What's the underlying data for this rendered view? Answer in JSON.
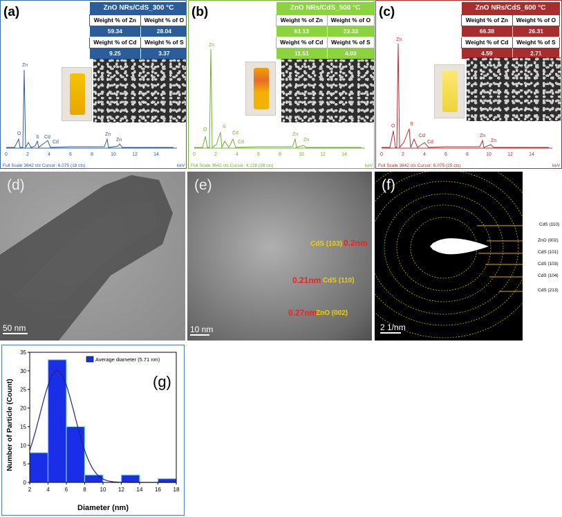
{
  "panel_a": {
    "letter": "(a)",
    "title": "ZnO NRs/CdS_300 °C",
    "headers": [
      "Weight % of Zn",
      "Weight % of O",
      "Weight % of Cd",
      "Weight % of S"
    ],
    "values": [
      "59.34",
      "28.04",
      "9.25",
      "3.37"
    ],
    "footer": "Full Scale 3642 cts Cursor: 6.075  (18 cts)",
    "unit": "keV",
    "color": "#2a5d9a"
  },
  "panel_b": {
    "letter": "(b)",
    "title": "ZnO NRs/CdS_500 °C",
    "headers": [
      "Weight % of Zn",
      "Weight % of O",
      "Weight % of Cd",
      "Weight % of S"
    ],
    "values": [
      "61.13",
      "23.33",
      "11.51",
      "4.03"
    ],
    "footer": "Full Scale 3642 cts Cursor: 4.128  (28 cts)",
    "unit": "keV",
    "color": "#6fb12e"
  },
  "panel_c": {
    "letter": "(c)",
    "title": "ZnO NRs/CdS_600 °C",
    "headers": [
      "Weight % of Zn",
      "Weight % of O",
      "Weight % of Cd",
      "Weight % of S"
    ],
    "values": [
      "66.38",
      "26.31",
      "4.59",
      "2.71"
    ],
    "footer": "Full Scale 3642 cts Cursor: 6.075  (25 cts)",
    "unit": "keV",
    "color": "#b03030"
  },
  "edx_axis_ticks": [
    "0",
    "2",
    "4",
    "6",
    "8",
    "10",
    "12",
    "14"
  ],
  "edx_peak_labels": [
    "Zn",
    "O",
    "S",
    "Cd",
    "Cd",
    "Zn",
    "Zn"
  ],
  "panel_d": {
    "letter": "(d)",
    "scale": "50 nm"
  },
  "panel_e": {
    "letter": "(e)",
    "scale": "10 nm",
    "plane_labels": [
      "CdS (103)",
      "CdS (110)",
      "ZnO (002)"
    ],
    "spacing_labels": [
      "0.2nm",
      "0.21nm",
      "0.27nm"
    ]
  },
  "panel_f": {
    "letter": "(f)",
    "scale": "2 1/nm",
    "ring_labels": [
      "CdS (110)",
      "ZnO (002)",
      "CdS (101)",
      "CdS (103)",
      "CdS (104)",
      "CdS (213)"
    ]
  },
  "chart_data": {
    "type": "bar",
    "panel_letter": "(g)",
    "legend": "Average diameter (5.71 nm)",
    "xlabel": "Diameter (nm)",
    "ylabel": "Number of Particle (Count)",
    "xlim": [
      2,
      18
    ],
    "ylim": [
      0,
      35
    ],
    "xticks": [
      "2",
      "4",
      "6",
      "8",
      "10",
      "12",
      "14",
      "16",
      "18"
    ],
    "yticks": [
      "0",
      "5",
      "10",
      "15",
      "20",
      "25",
      "30",
      "35"
    ],
    "bins": [
      {
        "from": 2,
        "to": 4,
        "value": 8
      },
      {
        "from": 4,
        "to": 6,
        "value": 33
      },
      {
        "from": 6,
        "to": 8,
        "value": 15
      },
      {
        "from": 8,
        "to": 10,
        "value": 2
      },
      {
        "from": 12,
        "to": 14,
        "value": 2
      },
      {
        "from": 16,
        "to": 18,
        "value": 1
      }
    ],
    "fit": {
      "type": "gaussian",
      "mean": 5.0,
      "sigma": 1.9,
      "peak": 30
    },
    "bar_color": "#1a2ee8",
    "legend_placement": "top-right"
  }
}
